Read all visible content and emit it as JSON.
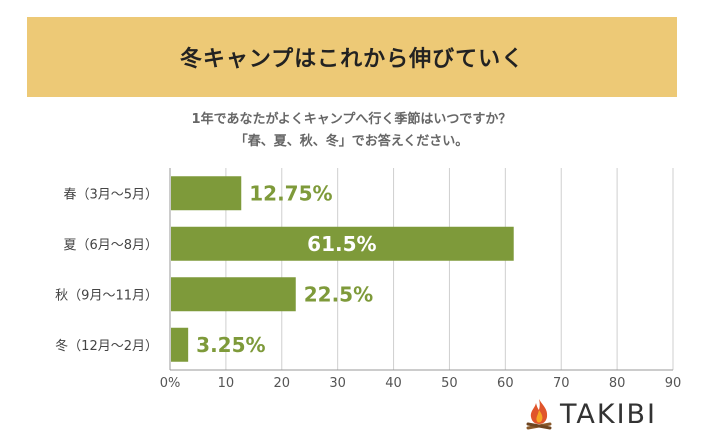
{
  "banner": {
    "title": "冬キャンプはこれから伸びていく"
  },
  "question": {
    "line1": "1年であなたがよくキャンプへ行く季節はいつですか？",
    "line2": "「春、夏、秋、冬」でお答えください。"
  },
  "logo": {
    "text": "TAKIBI",
    "icon": "campfire-icon"
  },
  "colors": {
    "banner": "#edc976",
    "bar": "#7e9a3a",
    "label": "#7e9a3a",
    "value_on_bar": "#ffffff"
  },
  "chart_data": {
    "type": "bar",
    "orientation": "horizontal",
    "categories": [
      "春（3月〜5月）",
      "夏（6月〜8月）",
      "秋（9月〜11月）",
      "冬（12月〜2月）"
    ],
    "values": [
      12.75,
      61.5,
      22.5,
      3.25
    ],
    "value_labels": [
      "12.75%",
      "61.5%",
      "22.5%",
      "3.25%"
    ],
    "xlim": [
      0,
      90
    ],
    "xticks": [
      0,
      10,
      20,
      30,
      40,
      50,
      60,
      70,
      80,
      90
    ],
    "xtick_labels": [
      "0%",
      "10",
      "20",
      "30",
      "40",
      "50",
      "60",
      "70",
      "80",
      "90"
    ],
    "grid": true
  }
}
